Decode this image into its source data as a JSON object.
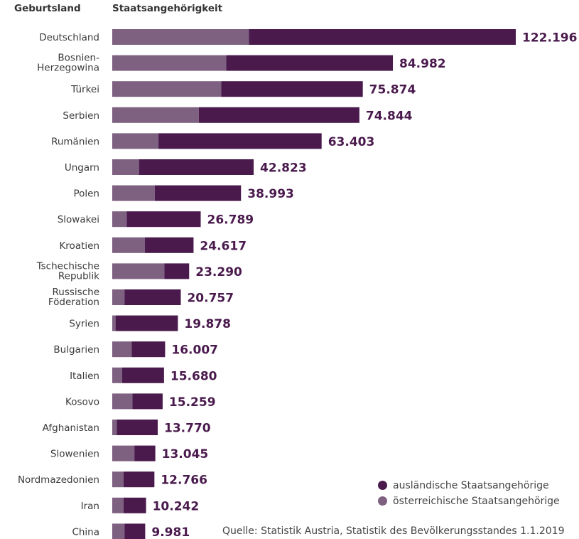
{
  "header": {
    "left": "Geburtsland",
    "right": "Staatsangehörigkeit"
  },
  "chart_data": {
    "type": "bar",
    "orientation": "horizontal",
    "stacked": true,
    "categories": [
      [
        "Deutschland"
      ],
      [
        "Bosnien-",
        "Herzegowina"
      ],
      [
        "Türkei"
      ],
      [
        "Serbien"
      ],
      [
        "Rumänien"
      ],
      [
        "Ungarn"
      ],
      [
        "Polen"
      ],
      [
        "Slowakei"
      ],
      [
        "Kroatien"
      ],
      [
        "Tschechische",
        "Republik"
      ],
      [
        "Russische",
        "Föderation"
      ],
      [
        "Syrien"
      ],
      [
        "Bulgarien"
      ],
      [
        "Italien"
      ],
      [
        "Kosovo"
      ],
      [
        "Afghanistan"
      ],
      [
        "Slowenien"
      ],
      [
        "Nordmazedonien"
      ],
      [
        "Iran"
      ],
      [
        "China"
      ]
    ],
    "totals_label": [
      "122.196",
      "84.982",
      "75.874",
      "74.844",
      "63.403",
      "42.823",
      "38.993",
      "26.789",
      "24.617",
      "23.290",
      "20.757",
      "19.878",
      "16.007",
      "15.680",
      "15.259",
      "13.770",
      "13.045",
      "12.766",
      "10.242",
      "9.981"
    ],
    "series": [
      {
        "name": "österreichische Staatsangehörige",
        "color": "#7e6180",
        "values": [
          41400,
          34500,
          33000,
          26200,
          14000,
          8100,
          12900,
          4400,
          9900,
          15800,
          3700,
          1000,
          5900,
          3000,
          6100,
          1400,
          6700,
          3400,
          3400,
          3700
        ]
      },
      {
        "name": "ausländische Staatsangehörige",
        "color": "#4a1a4d",
        "values": [
          80796,
          50482,
          42874,
          48644,
          49403,
          34723,
          26093,
          22389,
          14717,
          7490,
          17057,
          18878,
          10107,
          12680,
          9159,
          12370,
          6345,
          9366,
          6842,
          6281
        ]
      }
    ],
    "legend": {
      "position": "bottom-right",
      "items": [
        "ausländische Staatsangehörige",
        "österreichische Staatsangehörige"
      ]
    },
    "grid": false
  },
  "source": "Quelle: Statistik Austria, Statistik des Bevölkerungsstandes 1.1.2019"
}
